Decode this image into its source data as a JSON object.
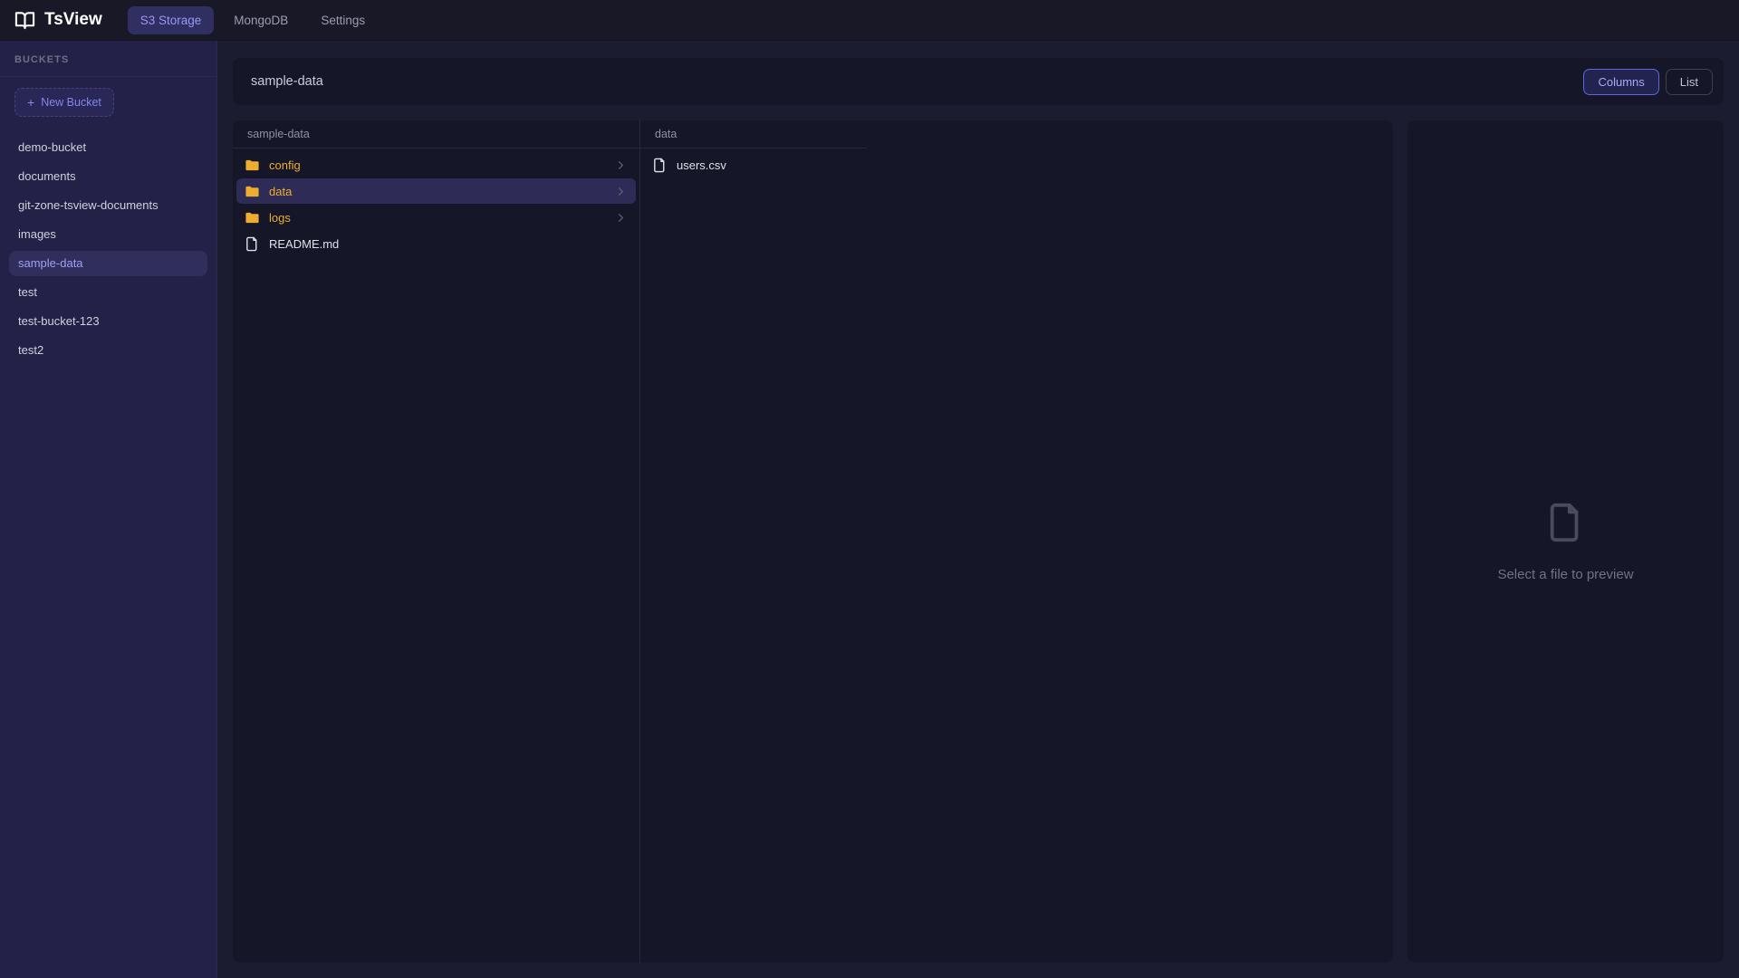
{
  "navbar": {
    "brand": "TsView",
    "tabs": [
      {
        "label": "S3 Storage",
        "active": true
      },
      {
        "label": "MongoDB",
        "active": false
      },
      {
        "label": "Settings",
        "active": false
      }
    ]
  },
  "sidebar": {
    "heading": "BUCKETS",
    "new_bucket": {
      "plus": "+",
      "label": "New Bucket"
    },
    "buckets": [
      {
        "name": "demo-bucket",
        "selected": false
      },
      {
        "name": "documents",
        "selected": false
      },
      {
        "name": "git-zone-tsview-documents",
        "selected": false
      },
      {
        "name": "images",
        "selected": false
      },
      {
        "name": "sample-data",
        "selected": true
      },
      {
        "name": "test",
        "selected": false
      },
      {
        "name": "test-bucket-123",
        "selected": false
      },
      {
        "name": "test2",
        "selected": false
      }
    ]
  },
  "main": {
    "title": "sample-data",
    "view_buttons": [
      {
        "label": "Columns",
        "active": true
      },
      {
        "label": "List",
        "active": false
      }
    ]
  },
  "columns": [
    {
      "header": "sample-data",
      "items": [
        {
          "name": "config",
          "type": "folder",
          "selected": false
        },
        {
          "name": "data",
          "type": "folder",
          "selected": true
        },
        {
          "name": "logs",
          "type": "folder",
          "selected": false
        },
        {
          "name": "README.md",
          "type": "file",
          "selected": false
        }
      ]
    },
    {
      "header": "data",
      "items": [
        {
          "name": "users.csv",
          "type": "file",
          "selected": false
        }
      ]
    }
  ],
  "preview": {
    "placeholder": "Select a file to preview"
  },
  "colors": {
    "accent_indigo": "#6366f1",
    "active_tab_bg": "#312f62",
    "active_tab_text": "#9598f5",
    "folder_amber": "#eead2e",
    "selected_row_bg": "#2e2c57",
    "selected_bucket_bg": "#302e5b",
    "selected_bucket_text": "#9ea0f3",
    "navbar_bg": "#181827",
    "sidebar_bg": "#232147",
    "card_bg": "#151627",
    "main_bg": "#1b1c30"
  }
}
